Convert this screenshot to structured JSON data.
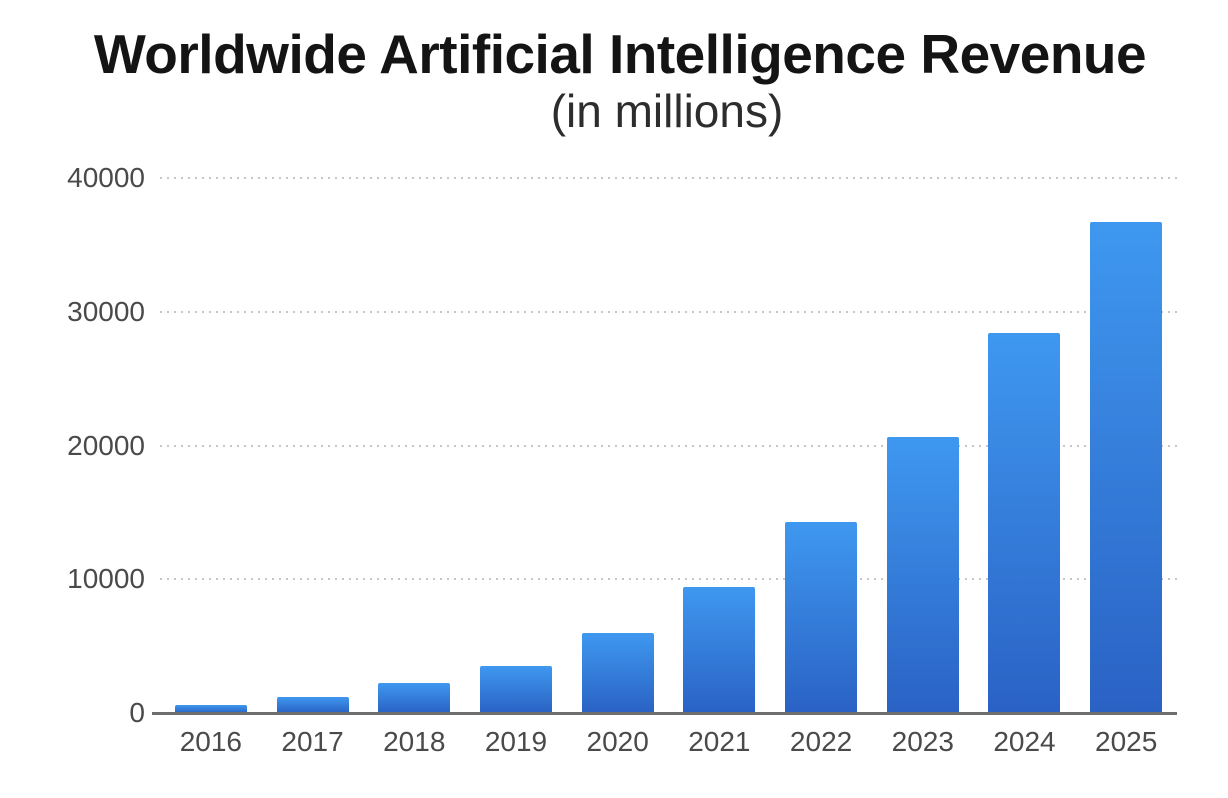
{
  "header": {
    "title": "Worldwide Artificial Intelligence Revenue",
    "subtitle": "(in millions)"
  },
  "chart_data": {
    "type": "bar",
    "title": "Worldwide Artificial Intelligence Revenue",
    "subtitle": "(in millions)",
    "categories": [
      "2016",
      "2017",
      "2018",
      "2019",
      "2020",
      "2021",
      "2022",
      "2023",
      "2024",
      "2025"
    ],
    "values": [
      620,
      1200,
      2250,
      3520,
      6000,
      9420,
      14280,
      20640,
      28410,
      36710
    ],
    "xlabel": "",
    "ylabel": "",
    "ylim": [
      0,
      40000
    ],
    "yticks": [
      0,
      10000,
      20000,
      30000,
      40000
    ],
    "grid": "horizontal-dotted",
    "legend": "none"
  },
  "colors": {
    "background": "#ffffff",
    "bar_gradient_top": "#3f98ef",
    "bar_gradient_bottom": "#2a62c4",
    "gridline": "#c6c6c6",
    "axis_line": "#6e6e6e",
    "tick_label": "#4a4a4a",
    "title_text": "#141414",
    "subtitle_text": "#2d2d2d"
  }
}
